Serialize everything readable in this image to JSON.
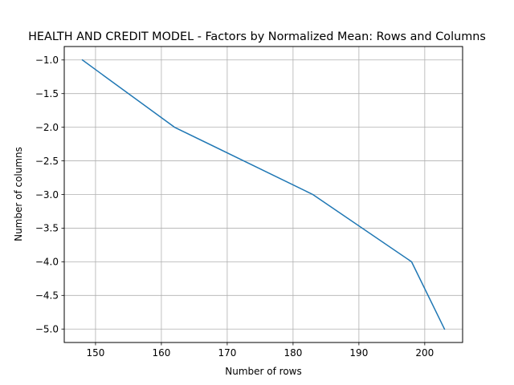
{
  "chart_data": {
    "type": "line",
    "title": "HEALTH AND CREDIT MODEL - Factors by Normalized Mean: Rows and Columns",
    "xlabel": "Number of rows",
    "ylabel": "Number of columns",
    "xlim": [
      145.25,
      205.75
    ],
    "ylim": [
      -5.2,
      -0.8
    ],
    "xticks": [
      150,
      160,
      170,
      180,
      190,
      200
    ],
    "xtick_labels": [
      "150",
      "160",
      "170",
      "180",
      "190",
      "200"
    ],
    "yticks": [
      -1.0,
      -1.5,
      -2.0,
      -2.5,
      -3.0,
      -3.5,
      -4.0,
      -4.5,
      -5.0
    ],
    "ytick_labels": [
      "−1.0",
      "−1.5",
      "−2.0",
      "−2.5",
      "−3.0",
      "−3.5",
      "−4.0",
      "−4.5",
      "−5.0"
    ],
    "grid": true,
    "series": [
      {
        "color": "#1f77b4",
        "x": [
          148,
          162,
          183,
          198,
          203
        ],
        "y": [
          -1,
          -2,
          -3,
          -4,
          -5
        ]
      }
    ]
  }
}
